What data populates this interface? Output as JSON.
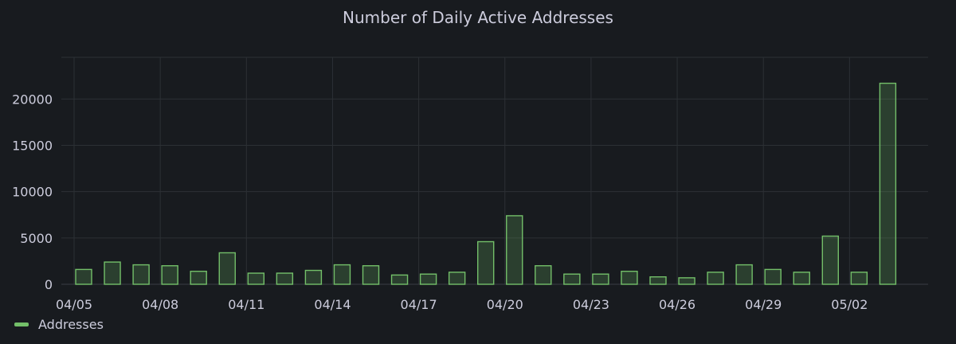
{
  "chart_data": {
    "type": "bar",
    "title": "Number of Daily Active Addresses",
    "xlabel": "",
    "ylabel": "",
    "x_tick_labels": [
      "04/05",
      "04/08",
      "04/11",
      "04/14",
      "04/17",
      "04/20",
      "04/23",
      "04/26",
      "04/29",
      "05/02"
    ],
    "y_ticks": [
      0,
      5000,
      10000,
      15000,
      20000
    ],
    "ylim": [
      0,
      24500
    ],
    "grid": true,
    "legend_position": "bottom-left",
    "series": [
      {
        "name": "Addresses",
        "color": "#73bf69",
        "categories": [
          "04/05",
          "04/06",
          "04/07",
          "04/08",
          "04/09",
          "04/10",
          "04/11",
          "04/12",
          "04/13",
          "04/14",
          "04/15",
          "04/16",
          "04/17",
          "04/18",
          "04/19",
          "04/20",
          "04/21",
          "04/22",
          "04/23",
          "04/24",
          "04/25",
          "04/26",
          "04/27",
          "04/28",
          "04/29",
          "04/30",
          "05/01",
          "05/02",
          "05/03"
        ],
        "values": [
          1600,
          2400,
          2100,
          2000,
          1400,
          3400,
          1200,
          1200,
          1500,
          2100,
          2000,
          1000,
          1100,
          1300,
          4600,
          7400,
          2000,
          1100,
          1100,
          1400,
          800,
          700,
          1300,
          2100,
          1600,
          1300,
          5200,
          1300,
          21700
        ]
      }
    ]
  }
}
